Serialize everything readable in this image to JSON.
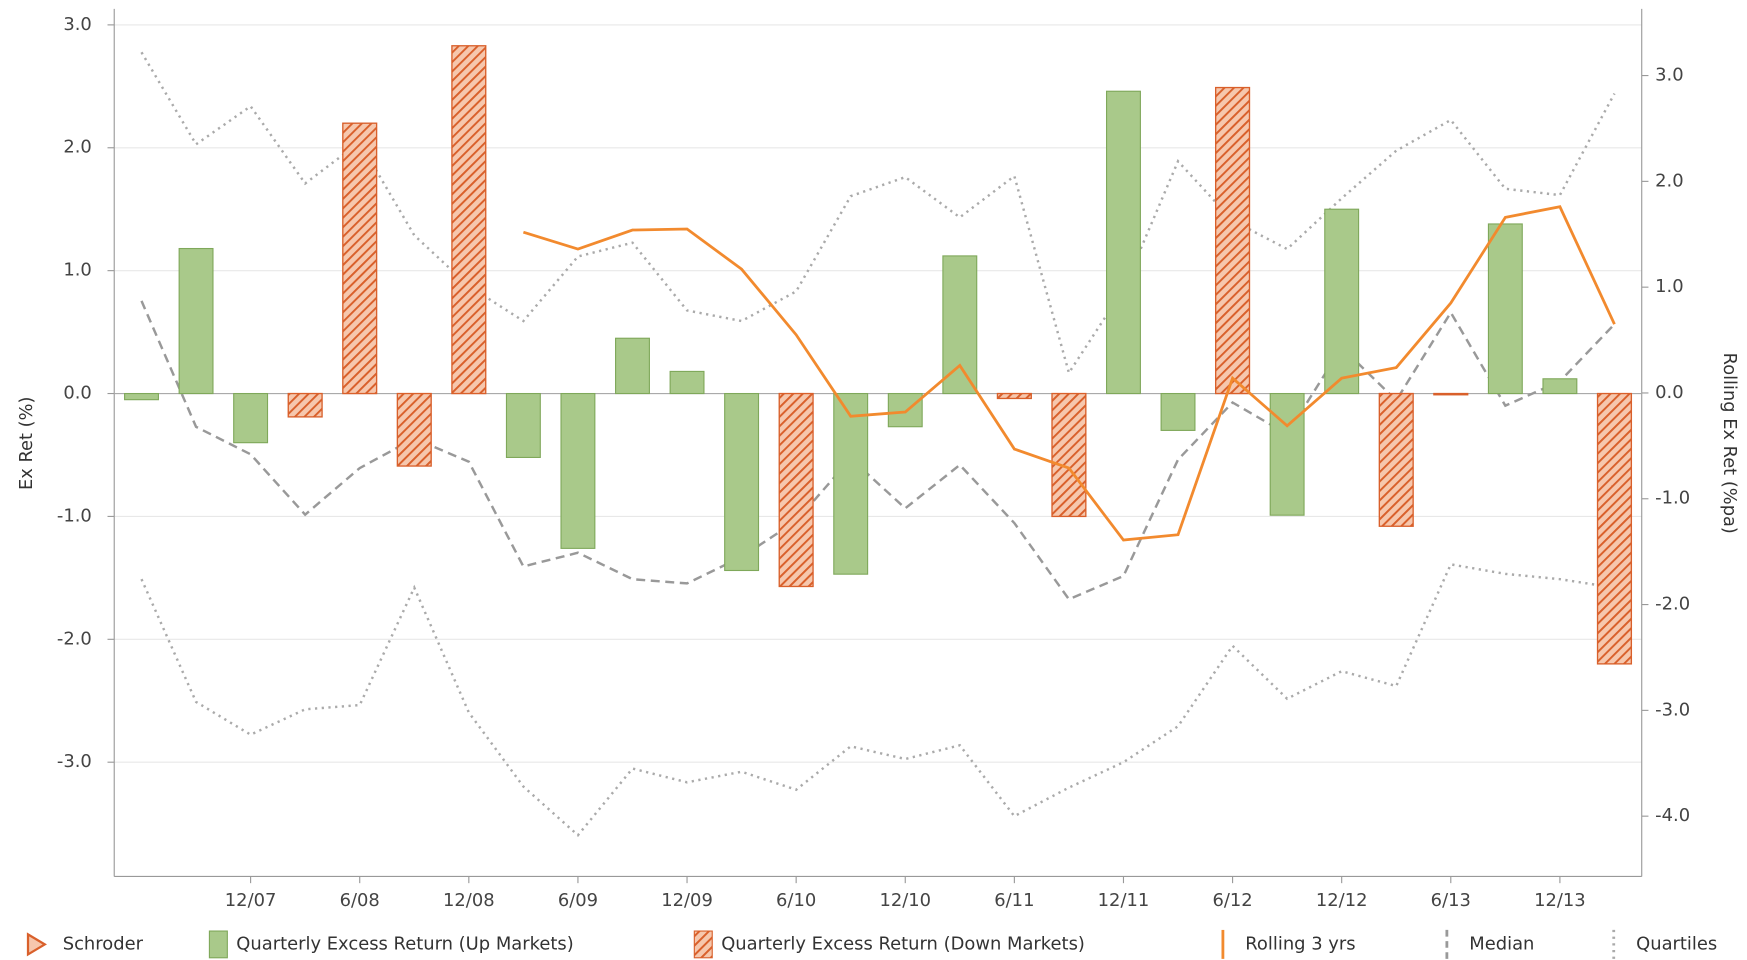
{
  "chart_data": {
    "type": "bar-line",
    "fund": "Schroder",
    "ylabel": "Ex Ret (%)",
    "y2label": "Rolling Ex Ret (%pa)",
    "categories": [
      null,
      null,
      "12/07",
      null,
      "6/08",
      null,
      "12/08",
      null,
      "6/09",
      null,
      "12/09",
      null,
      "6/10",
      null,
      "12/10",
      null,
      "6/11",
      null,
      "12/11",
      null,
      "6/12",
      null,
      "12/12",
      null,
      "6/13",
      null,
      "12/13",
      null
    ],
    "ylim": [
      -3.93,
      3.13
    ],
    "yticks": [
      {
        "value": 3,
        "label": "3.0"
      },
      {
        "value": 2,
        "label": "2.0"
      },
      {
        "value": 1,
        "label": "1.0"
      },
      {
        "value": 0,
        "label": "0.0"
      },
      {
        "value": -1,
        "label": "-1.0"
      },
      {
        "value": -2,
        "label": "-2.0"
      },
      {
        "value": -3,
        "label": "-3.0"
      }
    ],
    "y2lim": [
      -4.57,
      3.63
    ],
    "y2ticks": [
      {
        "value": 3,
        "label": "3.0"
      },
      {
        "value": 2,
        "label": "2.0"
      },
      {
        "value": 1,
        "label": "1.0"
      },
      {
        "value": 0,
        "label": "0.0"
      },
      {
        "value": -1,
        "label": "-1.0"
      },
      {
        "value": -2,
        "label": "-2.0"
      },
      {
        "value": -3,
        "label": "-3.0"
      },
      {
        "value": -4,
        "label": "-4.0"
      }
    ],
    "grid": true,
    "series": [
      {
        "name": "Quarterly Excess Return (Up Markets)",
        "kind": "bar",
        "color": "#a9c98a",
        "values": [
          -0.05,
          1.18,
          -0.4,
          null,
          null,
          null,
          null,
          -0.52,
          -1.26,
          0.45,
          0.18,
          -1.44,
          null,
          -1.47,
          -0.27,
          1.12,
          null,
          null,
          2.46,
          -0.3,
          null,
          -0.99,
          1.5,
          null,
          null,
          1.38,
          0.12,
          null
        ]
      },
      {
        "name": "Quarterly Excess Return (Down Markets)",
        "kind": "hatched-bar",
        "color": "#d9602b",
        "values": [
          null,
          null,
          null,
          -0.19,
          2.2,
          -0.59,
          2.83,
          null,
          null,
          null,
          null,
          null,
          -1.57,
          null,
          null,
          null,
          -0.04,
          -1.0,
          null,
          null,
          2.49,
          null,
          null,
          -1.08,
          -0.01,
          null,
          null,
          -2.2
        ]
      },
      {
        "name": "Rolling 3 yrs",
        "kind": "line",
        "axis": "y2",
        "color": "#f28a2e",
        "values": [
          null,
          null,
          null,
          null,
          null,
          null,
          null,
          1.52,
          1.36,
          1.54,
          1.55,
          1.17,
          0.55,
          -0.22,
          -0.18,
          0.26,
          -0.53,
          -0.71,
          -1.39,
          -1.34,
          0.14,
          -0.31,
          0.14,
          0.24,
          0.85,
          1.66,
          1.76,
          0.65
        ]
      },
      {
        "name": "Median",
        "kind": "dashed",
        "axis": "y2",
        "color": "#999999",
        "values": [
          0.87,
          -0.32,
          -0.58,
          -1.15,
          -0.71,
          -0.43,
          -0.65,
          -1.64,
          -1.51,
          -1.76,
          -1.8,
          -1.55,
          -1.21,
          -0.62,
          -1.09,
          -0.68,
          -1.23,
          -1.95,
          -1.73,
          -0.63,
          -0.09,
          -0.39,
          0.43,
          -0.07,
          0.76,
          -0.12,
          0.11,
          0.65
        ]
      },
      {
        "name": "Quartiles",
        "kind": "dotted",
        "axis": "y2",
        "color": "#aaaaaa",
        "upper": [
          3.22,
          2.35,
          2.71,
          1.98,
          2.37,
          1.49,
          1.01,
          0.68,
          1.29,
          1.42,
          0.78,
          0.68,
          0.96,
          1.86,
          2.04,
          1.66,
          2.05,
          0.19,
          0.98,
          2.19,
          1.63,
          1.36,
          1.84,
          2.29,
          2.58,
          1.93,
          1.87,
          2.83
        ],
        "lower": [
          -1.76,
          -2.92,
          -3.23,
          -2.99,
          -2.95,
          -1.84,
          -3.02,
          -3.72,
          -4.18,
          -3.55,
          -3.68,
          -3.58,
          -3.75,
          -3.34,
          -3.46,
          -3.33,
          -4.0,
          -3.73,
          -3.49,
          -3.15,
          -2.39,
          -2.89,
          -2.63,
          -2.77,
          -1.62,
          -1.71,
          -1.76,
          -1.84
        ]
      }
    ]
  }
}
